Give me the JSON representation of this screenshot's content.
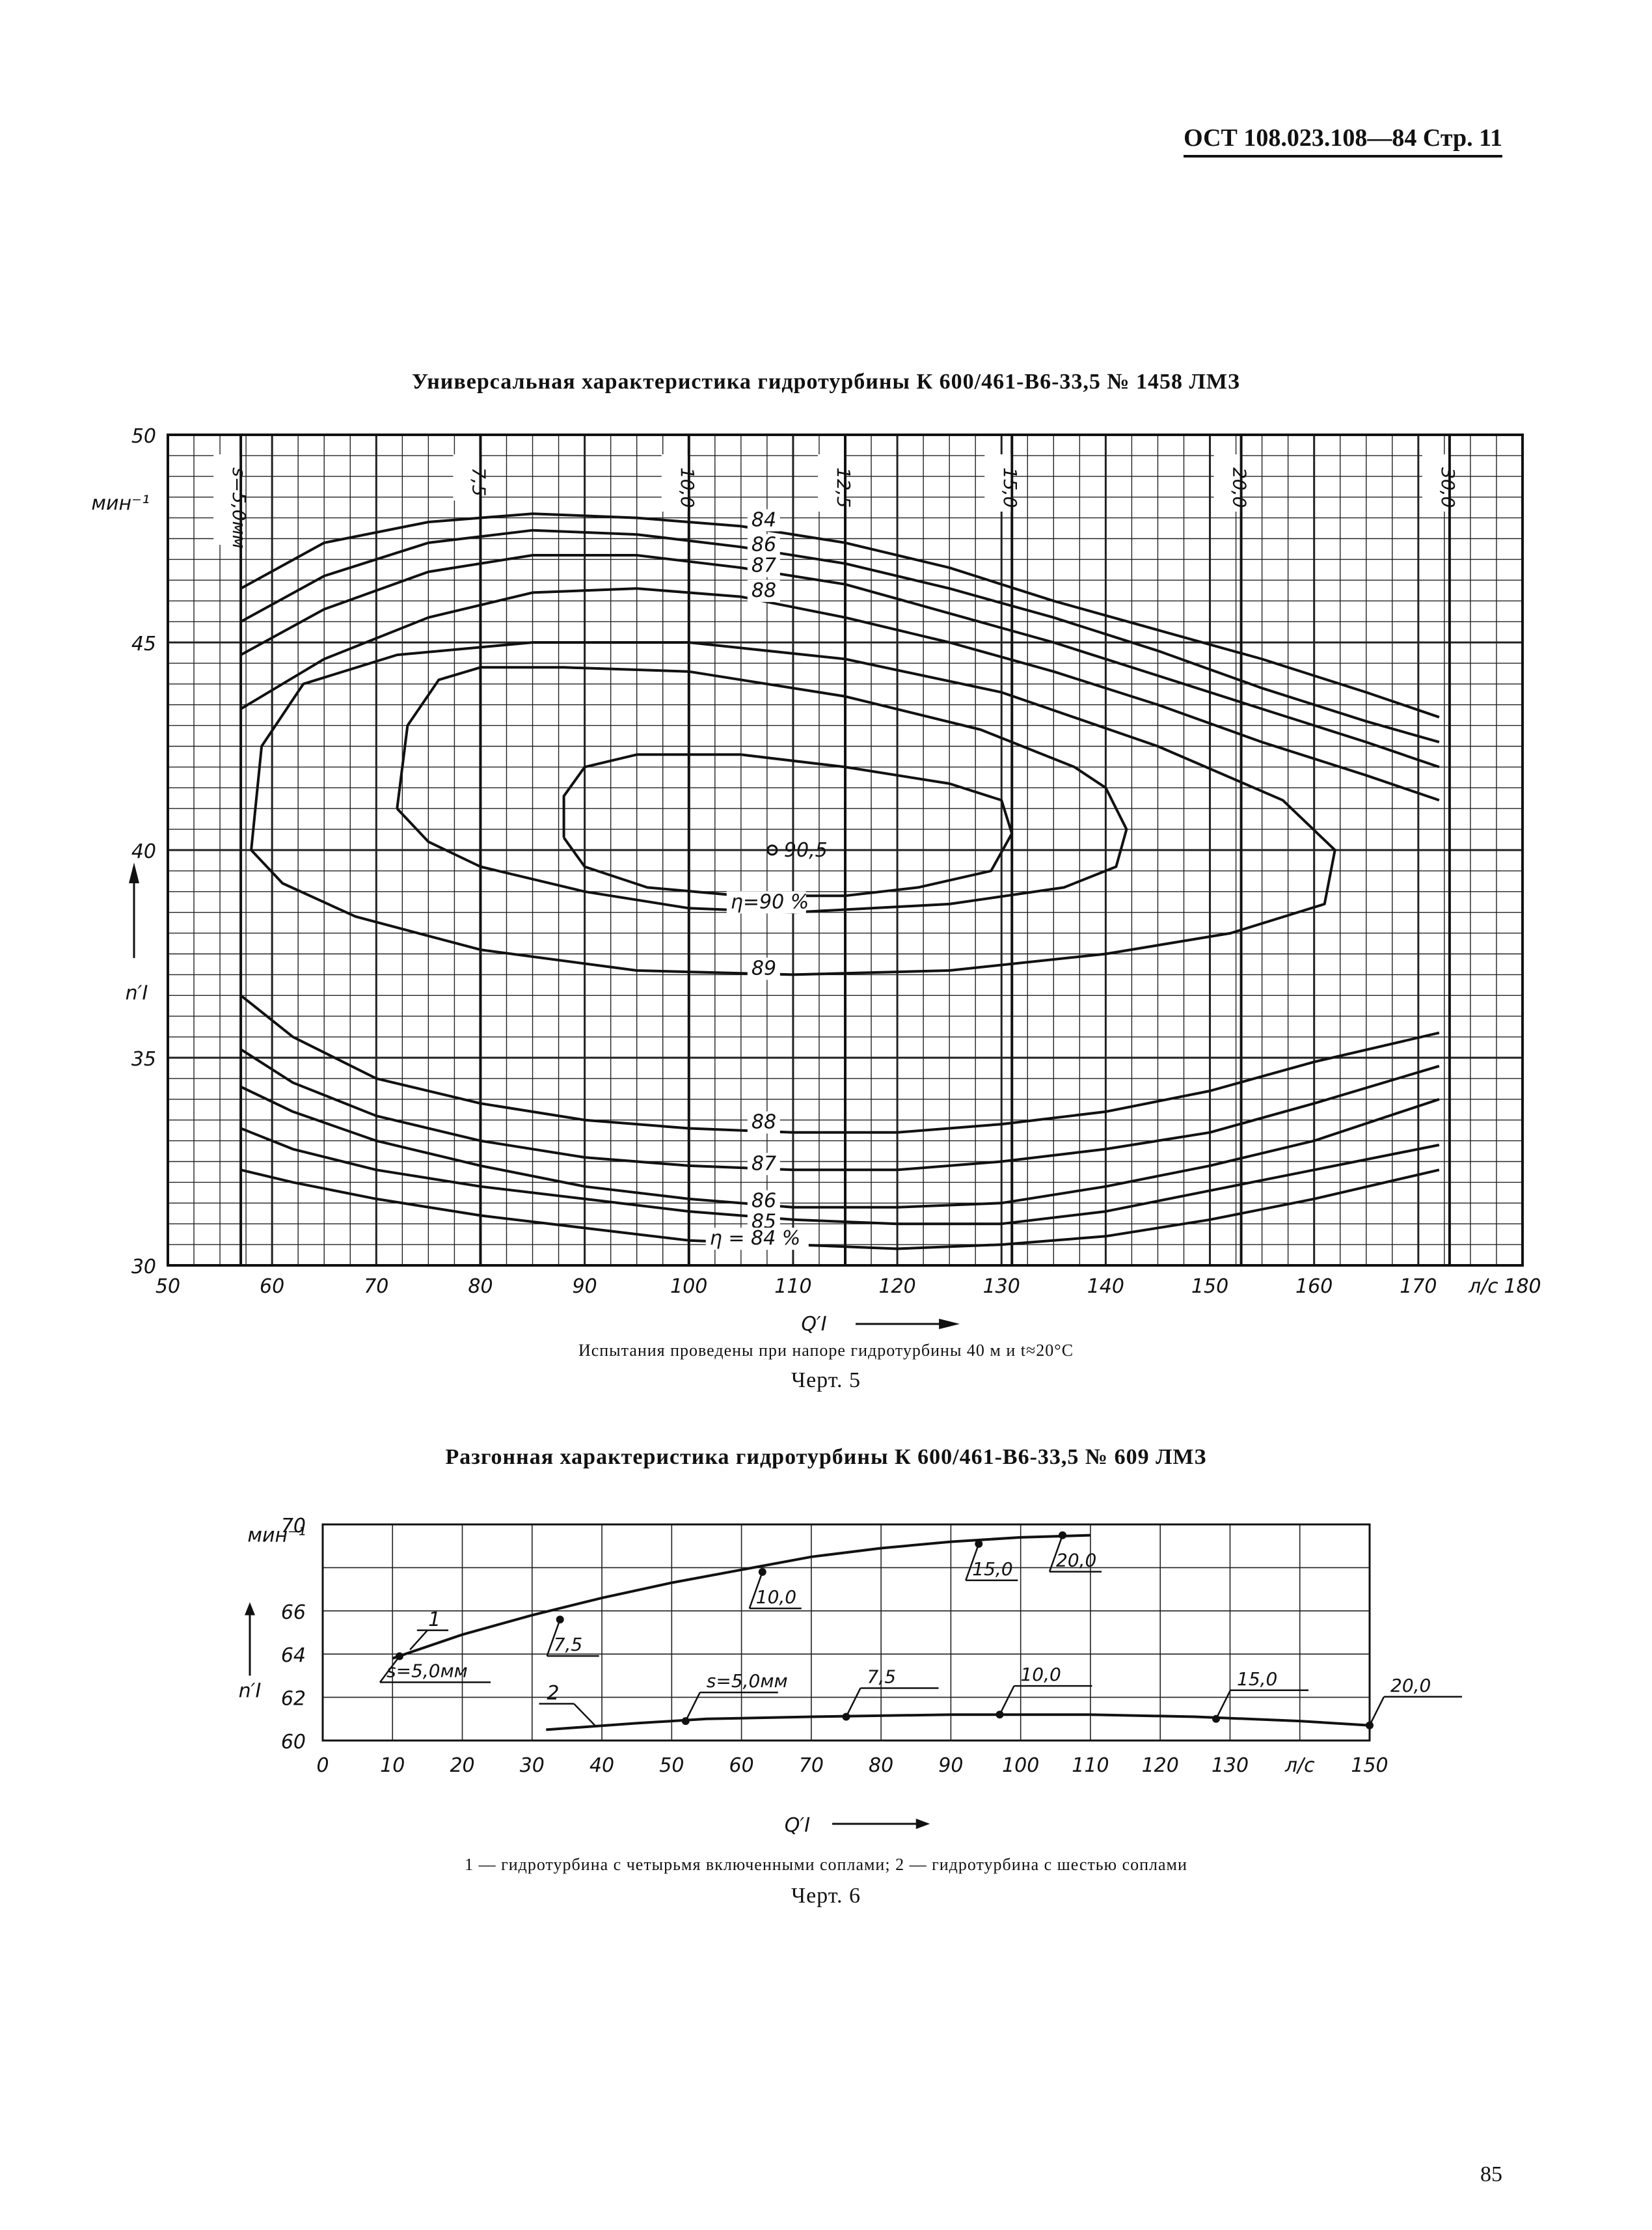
{
  "header": {
    "code": "ОСТ 108.023.108—84 Стр. 11"
  },
  "page_number": "85",
  "chart_data": [
    {
      "type": "line",
      "title": "Универсальная характеристика гидротурбины К 600/461-В6-33,5 № 1458 ЛМЗ",
      "xlabel": "Q′I",
      "x_unit": "л/с",
      "ylabel": "n′I",
      "y_unit": "мин⁻¹",
      "xlim": [
        50,
        180
      ],
      "ylim": [
        30,
        50
      ],
      "grid": true,
      "x_tick_labels": [
        "50",
        "60",
        "70",
        "80",
        "90",
        "100",
        "110",
        "120",
        "130",
        "140",
        "150",
        "160",
        "170",
        "180"
      ],
      "y_tick_labels": [
        "30",
        "35",
        "40",
        "45",
        "50"
      ],
      "opening_lines": [
        {
          "label": "s=5,0мм",
          "x": 57
        },
        {
          "label": "7,5",
          "x": 80
        },
        {
          "label": "10,0",
          "x": 100
        },
        {
          "label": "12,5",
          "x": 115
        },
        {
          "label": "15,0",
          "x": 131
        },
        {
          "label": "20,0",
          "x": 153
        },
        {
          "label": "30,0",
          "x": 173
        }
      ],
      "efficiency_upper": [
        {
          "label": "84",
          "points": [
            [
              57,
              46.3
            ],
            [
              65,
              47.4
            ],
            [
              75,
              47.9
            ],
            [
              85,
              48.1
            ],
            [
              95,
              48.0
            ],
            [
              105,
              47.8
            ],
            [
              115,
              47.4
            ],
            [
              125,
              46.8
            ],
            [
              135,
              46.0
            ],
            [
              145,
              45.3
            ],
            [
              155,
              44.6
            ],
            [
              165,
              43.8
            ],
            [
              172,
              43.2
            ]
          ]
        },
        {
          "label": "86",
          "points": [
            [
              57,
              45.5
            ],
            [
              65,
              46.6
            ],
            [
              75,
              47.4
            ],
            [
              85,
              47.7
            ],
            [
              95,
              47.6
            ],
            [
              105,
              47.3
            ],
            [
              115,
              46.9
            ],
            [
              125,
              46.3
            ],
            [
              135,
              45.6
            ],
            [
              145,
              44.8
            ],
            [
              155,
              43.9
            ],
            [
              165,
              43.1
            ],
            [
              172,
              42.6
            ]
          ]
        },
        {
          "label": "87",
          "points": [
            [
              57,
              44.7
            ],
            [
              65,
              45.8
            ],
            [
              75,
              46.7
            ],
            [
              85,
              47.1
            ],
            [
              95,
              47.1
            ],
            [
              105,
              46.8
            ],
            [
              115,
              46.4
            ],
            [
              125,
              45.7
            ],
            [
              135,
              45.0
            ],
            [
              145,
              44.2
            ],
            [
              155,
              43.4
            ],
            [
              165,
              42.6
            ],
            [
              172,
              42.0
            ]
          ]
        },
        {
          "label": "88",
          "points": [
            [
              57,
              43.4
            ],
            [
              65,
              44.6
            ],
            [
              75,
              45.6
            ],
            [
              85,
              46.2
            ],
            [
              95,
              46.3
            ],
            [
              105,
              46.1
            ],
            [
              115,
              45.6
            ],
            [
              125,
              45.0
            ],
            [
              135,
              44.3
            ],
            [
              145,
              43.5
            ],
            [
              155,
              42.6
            ],
            [
              165,
              41.8
            ],
            [
              172,
              41.2
            ]
          ]
        }
      ],
      "efficiency_closed": [
        {
          "label": "89",
          "points": [
            [
              58,
              40.0
            ],
            [
              59,
              42.5
            ],
            [
              63,
              44.0
            ],
            [
              72,
              44.7
            ],
            [
              85,
              45.0
            ],
            [
              100,
              45.0
            ],
            [
              115,
              44.6
            ],
            [
              130,
              43.8
            ],
            [
              145,
              42.5
            ],
            [
              157,
              41.2
            ],
            [
              162,
              40.0
            ],
            [
              161,
              38.7
            ],
            [
              152,
              38.0
            ],
            [
              140,
              37.5
            ],
            [
              125,
              37.1
            ],
            [
              110,
              37.0
            ],
            [
              95,
              37.1
            ],
            [
              80,
              37.6
            ],
            [
              68,
              38.4
            ],
            [
              61,
              39.2
            ],
            [
              58,
              40.0
            ]
          ]
        },
        {
          "label": "η=90 %",
          "points": [
            [
              72,
              41.0
            ],
            [
              73,
              43.0
            ],
            [
              76,
              44.1
            ],
            [
              80,
              44.4
            ],
            [
              88,
              44.4
            ],
            [
              100,
              44.3
            ],
            [
              115,
              43.7
            ],
            [
              128,
              42.9
            ],
            [
              137,
              42.0
            ],
            [
              140,
              41.5
            ],
            [
              142,
              40.5
            ],
            [
              141,
              39.6
            ],
            [
              136,
              39.1
            ],
            [
              125,
              38.7
            ],
            [
              110,
              38.5
            ],
            [
              100,
              38.6
            ],
            [
              90,
              39.0
            ],
            [
              80,
              39.6
            ],
            [
              75,
              40.2
            ],
            [
              72,
              41.0
            ]
          ]
        },
        {
          "label": "90,5",
          "points": [
            [
              88,
              40.3
            ],
            [
              88,
              41.3
            ],
            [
              90,
              42.0
            ],
            [
              95,
              42.3
            ],
            [
              105,
              42.3
            ],
            [
              115,
              42.0
            ],
            [
              125,
              41.6
            ],
            [
              130,
              41.2
            ],
            [
              131,
              40.4
            ],
            [
              129,
              39.5
            ],
            [
              122,
              39.1
            ],
            [
              115,
              38.9
            ],
            [
              105,
              38.9
            ],
            [
              96,
              39.1
            ],
            [
              90,
              39.6
            ],
            [
              88,
              40.3
            ]
          ]
        }
      ],
      "efficiency_lower": [
        {
          "label": "88",
          "points": [
            [
              57,
              36.5
            ],
            [
              62,
              35.5
            ],
            [
              70,
              34.5
            ],
            [
              80,
              33.9
            ],
            [
              90,
              33.5
            ],
            [
              100,
              33.3
            ],
            [
              110,
              33.2
            ],
            [
              120,
              33.2
            ],
            [
              130,
              33.4
            ],
            [
              140,
              33.7
            ],
            [
              150,
              34.2
            ],
            [
              160,
              34.9
            ],
            [
              172,
              35.6
            ]
          ]
        },
        {
          "label": "87",
          "points": [
            [
              57,
              35.2
            ],
            [
              62,
              34.4
            ],
            [
              70,
              33.6
            ],
            [
              80,
              33.0
            ],
            [
              90,
              32.6
            ],
            [
              100,
              32.4
            ],
            [
              110,
              32.3
            ],
            [
              120,
              32.3
            ],
            [
              130,
              32.5
            ],
            [
              140,
              32.8
            ],
            [
              150,
              33.2
            ],
            [
              160,
              33.9
            ],
            [
              172,
              34.8
            ]
          ]
        },
        {
          "label": "86",
          "points": [
            [
              57,
              34.3
            ],
            [
              62,
              33.7
            ],
            [
              70,
              33.0
            ],
            [
              80,
              32.4
            ],
            [
              90,
              31.9
            ],
            [
              100,
              31.6
            ],
            [
              110,
              31.4
            ],
            [
              120,
              31.4
            ],
            [
              130,
              31.5
            ],
            [
              140,
              31.9
            ],
            [
              150,
              32.4
            ],
            [
              160,
              33.0
            ],
            [
              172,
              34.0
            ]
          ]
        },
        {
          "label": "85",
          "points": [
            [
              57,
              33.3
            ],
            [
              62,
              32.8
            ],
            [
              70,
              32.3
            ],
            [
              80,
              31.9
            ],
            [
              90,
              31.6
            ],
            [
              100,
              31.3
            ],
            [
              110,
              31.1
            ],
            [
              120,
              31.0
            ],
            [
              130,
              31.0
            ],
            [
              140,
              31.3
            ],
            [
              150,
              31.8
            ],
            [
              160,
              32.3
            ],
            [
              172,
              32.9
            ]
          ]
        },
        {
          "label": "η = 84 %",
          "points": [
            [
              57,
              32.3
            ],
            [
              62,
              32.0
            ],
            [
              70,
              31.6
            ],
            [
              80,
              31.2
            ],
            [
              90,
              30.9
            ],
            [
              100,
              30.6
            ],
            [
              110,
              30.5
            ],
            [
              120,
              30.4
            ],
            [
              130,
              30.5
            ],
            [
              140,
              30.7
            ],
            [
              150,
              31.1
            ],
            [
              160,
              31.6
            ],
            [
              172,
              32.3
            ]
          ]
        }
      ],
      "optimum_point": {
        "x": 108,
        "y": 40.0,
        "label": "90,5"
      },
      "caption": "Испытания проведены при напоре гидротурбины 40 м и t≈20°C",
      "figure": "Черт. 5"
    },
    {
      "type": "line",
      "title": "Разгонная характеристика гидротурбины К 600/461-В6-33,5 № 609 ЛМЗ",
      "xlabel": "Q′I",
      "x_unit": "л/с",
      "ylabel": "n′I",
      "y_unit": "мин⁻¹",
      "xlim": [
        0,
        150
      ],
      "ylim": [
        60,
        70
      ],
      "grid": true,
      "x_tick_labels": [
        "0",
        "10",
        "20",
        "30",
        "40",
        "50",
        "60",
        "70",
        "80",
        "90",
        "100",
        "110",
        "120",
        "130",
        "150"
      ],
      "y_tick_labels": [
        "60",
        "62",
        "64",
        "66",
        "70"
      ],
      "series": [
        {
          "name": "1",
          "line": [
            [
              10,
              63.8
            ],
            [
              20,
              64.9
            ],
            [
              30,
              65.8
            ],
            [
              40,
              66.6
            ],
            [
              50,
              67.3
            ],
            [
              60,
              67.9
            ],
            [
              70,
              68.5
            ],
            [
              80,
              68.9
            ],
            [
              90,
              69.2
            ],
            [
              100,
              69.4
            ],
            [
              110,
              69.5
            ]
          ],
          "markers": [
            {
              "x": 11,
              "y": 63.9,
              "label": "s=5,0мм"
            },
            {
              "x": 34,
              "y": 65.6,
              "label": "7,5"
            },
            {
              "x": 63,
              "y": 67.8,
              "label": "10,0"
            },
            {
              "x": 94,
              "y": 69.1,
              "label": "15,0"
            },
            {
              "x": 106,
              "y": 69.5,
              "label": "20,0"
            }
          ]
        },
        {
          "name": "2",
          "line": [
            [
              32,
              60.5
            ],
            [
              45,
              60.8
            ],
            [
              55,
              61.0
            ],
            [
              70,
              61.1
            ],
            [
              90,
              61.2
            ],
            [
              110,
              61.2
            ],
            [
              125,
              61.1
            ],
            [
              140,
              60.9
            ],
            [
              150,
              60.7
            ]
          ],
          "markers": [
            {
              "x": 52,
              "y": 60.9,
              "label": "s=5,0мм"
            },
            {
              "x": 75,
              "y": 61.1,
              "label": "7,5"
            },
            {
              "x": 97,
              "y": 61.2,
              "label": "10,0"
            },
            {
              "x": 128,
              "y": 61.0,
              "label": "15,0"
            },
            {
              "x": 150,
              "y": 60.7,
              "label": "20,0"
            }
          ]
        }
      ],
      "caption": "1 — гидротурбина с четырьмя включенными соплами; 2 — гидротурбина с шестью соплами",
      "figure": "Черт. 6"
    }
  ]
}
